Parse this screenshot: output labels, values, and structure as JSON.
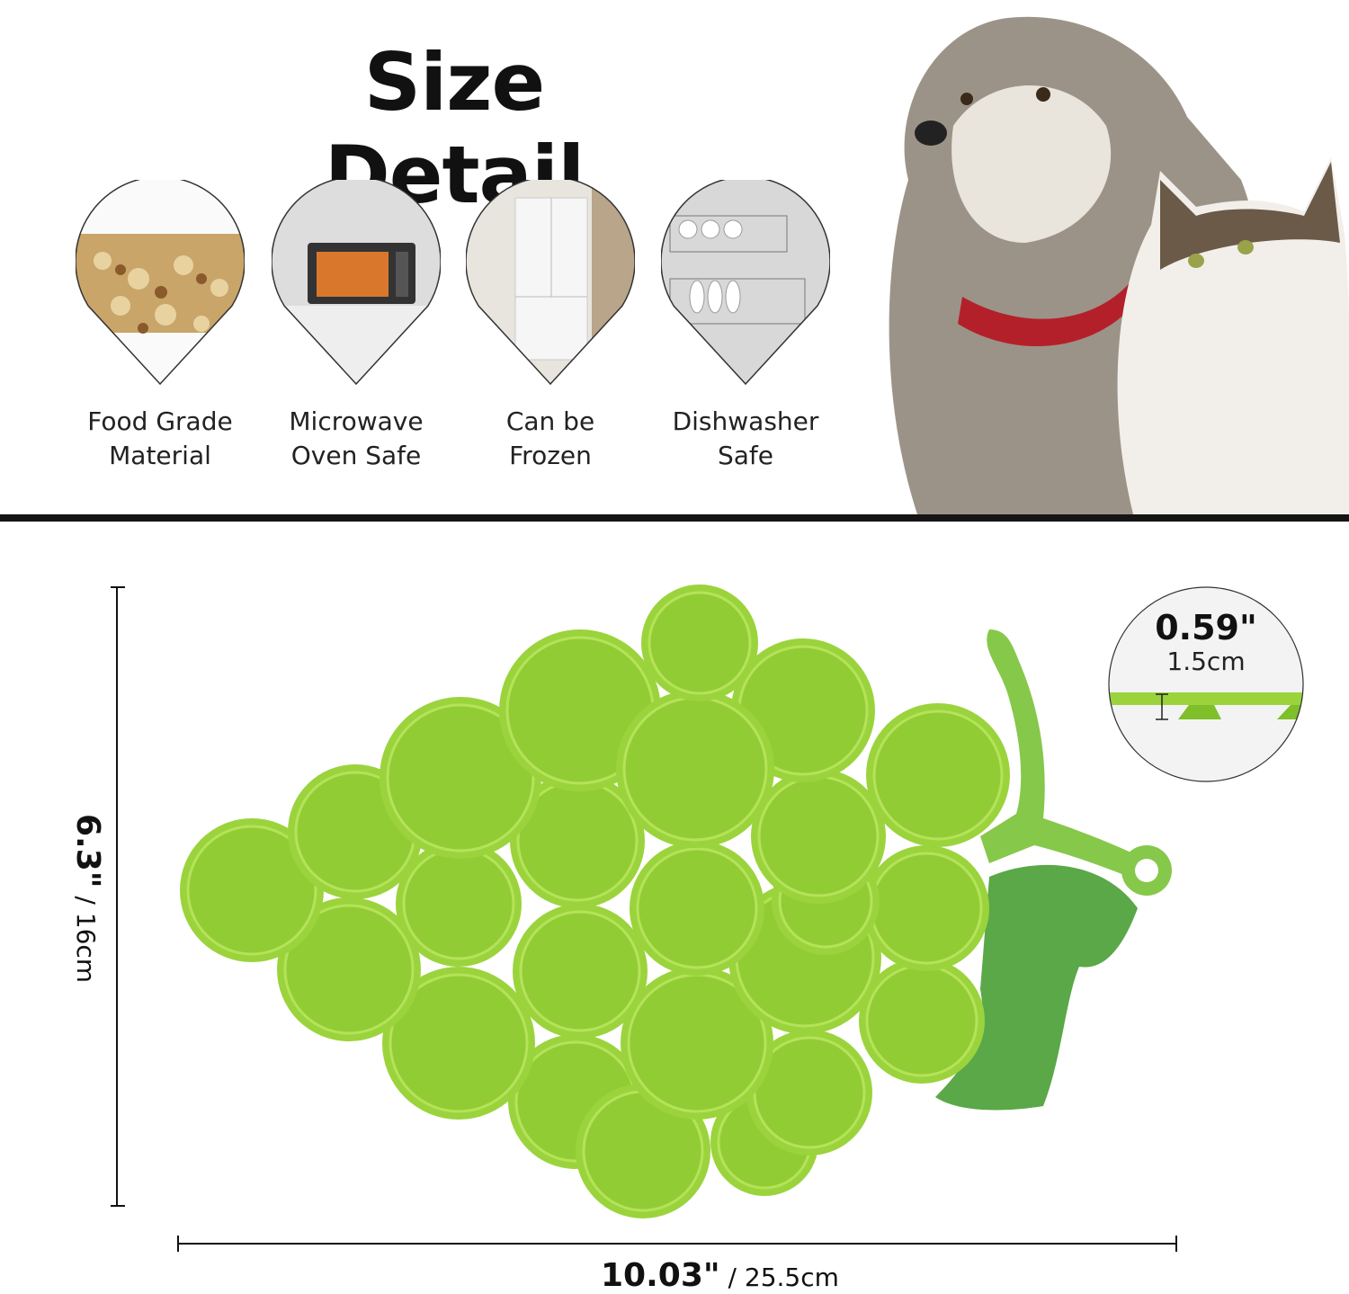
{
  "title": "Size Detail",
  "features": [
    {
      "icon": "food-kibble-photo",
      "line1": "Food Grade",
      "line2": "Material"
    },
    {
      "icon": "microwave-oven-photo",
      "line1": "Microwave",
      "line2": "Oven Safe"
    },
    {
      "icon": "refrigerator-photo",
      "line1": "Can be",
      "line2": "Frozen"
    },
    {
      "icon": "dishwasher-photo",
      "line1": "Dishwasher",
      "line2": "Safe"
    }
  ],
  "dimensions": {
    "height_in": "6.3\"",
    "height_cm": " / 16cm",
    "width_in": "10.03\"",
    "width_cm": " / 25.5cm",
    "thickness_in": "0.59\"",
    "thickness_cm": "1.5cm"
  },
  "colors": {
    "grape_green": "#9bd33c",
    "stem_green": "#86c84a",
    "leaf_green": "#5aa847",
    "divider": "#151515"
  }
}
